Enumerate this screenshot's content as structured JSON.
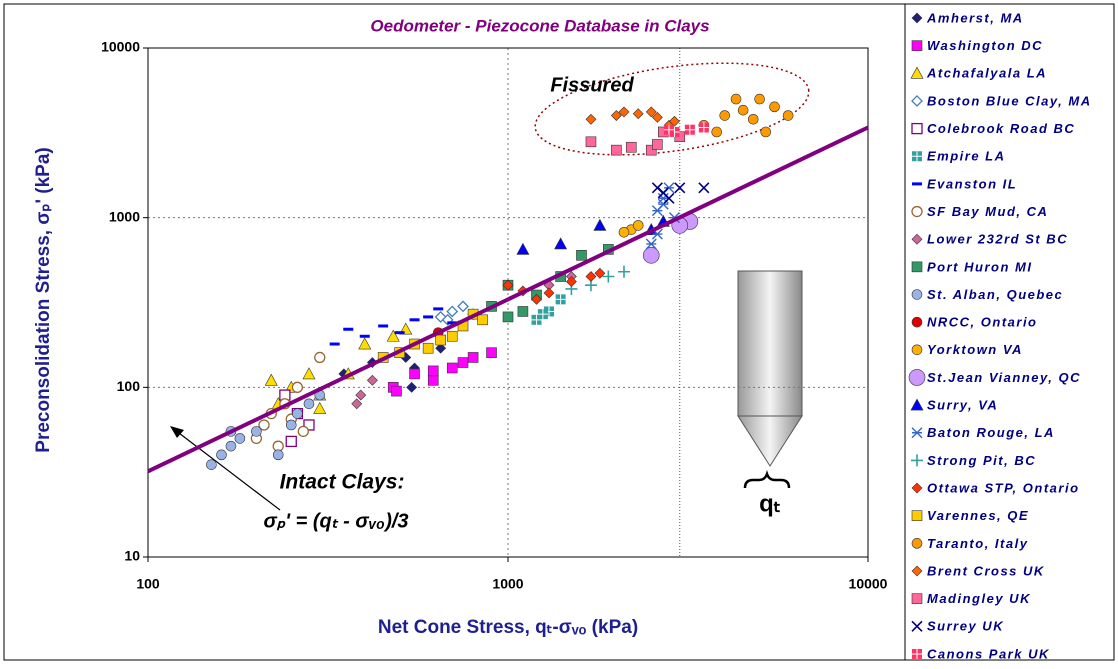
{
  "chart_data": {
    "type": "scatter",
    "title": "Oedometer - Piezocone Database in Clays",
    "x_label": "Net Cone Stress, qₜ-σᵥₒ   (kPa)",
    "y_label": "Preconsolidation Stress, σₚ'  (kPa)",
    "log_x": true,
    "log_y": true,
    "grid": true,
    "xlim": [
      100,
      10000
    ],
    "ylim": [
      10,
      10000
    ],
    "xticks": [
      100,
      1000,
      10000
    ],
    "yticks": [
      10,
      100,
      1000,
      10000
    ],
    "reference_line_x": 3000,
    "fit_line": {
      "x": [
        100,
        10000
      ],
      "values": [
        32,
        3400
      ],
      "color": "#800080"
    },
    "annotations": [
      "Fissured",
      "Intact Clays:",
      "σₚ' = (qₜ - σᵥₒ)/3",
      "qₜ"
    ],
    "series": [
      {
        "name": "Amherst, MA",
        "color": "#1f1f7a",
        "marker": "diamond",
        "x": [
          350,
          420,
          520,
          550,
          650,
          540
        ],
        "values": [
          120,
          140,
          150,
          130,
          170,
          100
        ]
      },
      {
        "name": "Washington DC",
        "color": "#ff00ff",
        "marker": "square",
        "x": [
          480,
          550,
          620,
          700,
          800,
          900,
          490,
          750,
          620
        ],
        "values": [
          100,
          120,
          110,
          130,
          150,
          160,
          95,
          140,
          125
        ]
      },
      {
        "name": "Atchafalyala LA",
        "color": "#ffdd00",
        "marker": "triangle",
        "x": [
          220,
          250,
          300,
          360,
          400,
          480,
          520,
          230,
          300,
          280
        ],
        "values": [
          110,
          100,
          90,
          120,
          180,
          200,
          220,
          80,
          75,
          120
        ]
      },
      {
        "name": "Boston Blue Clay, MA",
        "color": "#3f7fbf",
        "marker": "diamond-open",
        "x": [
          650,
          700,
          750,
          800,
          680
        ],
        "values": [
          260,
          280,
          300,
          270,
          250
        ]
      },
      {
        "name": "Colebrook Road BC",
        "color": "#800080",
        "marker": "square-open",
        "x": [
          250,
          260,
          280,
          240
        ],
        "values": [
          48,
          70,
          60,
          90
        ]
      },
      {
        "name": "Empire LA",
        "color": "#33a0a0",
        "marker": "plus-square",
        "x": [
          1200,
          1300,
          1400,
          1250
        ],
        "values": [
          250,
          280,
          330,
          270
        ]
      },
      {
        "name": "Evanston IL",
        "color": "#0000ff",
        "marker": "dash",
        "x": [
          330,
          360,
          400,
          450,
          550,
          600,
          700,
          500,
          640
        ],
        "values": [
          180,
          220,
          200,
          230,
          250,
          260,
          240,
          210,
          290
        ]
      },
      {
        "name": "SF Bay Mud, CA",
        "color": "#996633",
        "marker": "circle-open",
        "x": [
          200,
          210,
          220,
          240,
          260,
          300,
          230,
          270,
          250
        ],
        "values": [
          50,
          60,
          70,
          80,
          100,
          150,
          45,
          55,
          65
        ]
      },
      {
        "name": "Lower 232rd St BC",
        "color": "#cc6699",
        "marker": "diamond",
        "x": [
          380,
          390,
          420,
          1300,
          1500
        ],
        "values": [
          80,
          90,
          110,
          400,
          450
        ]
      },
      {
        "name": "Port Huron MI",
        "color": "#339966",
        "marker": "square",
        "x": [
          900,
          1000,
          1100,
          1200,
          1400,
          1600,
          1900,
          1000
        ],
        "values": [
          300,
          260,
          280,
          350,
          450,
          600,
          650,
          400
        ]
      },
      {
        "name": "St. Alban, Quebec",
        "color": "#99b3e6",
        "marker": "circle",
        "x": [
          150,
          170,
          180,
          200,
          230,
          250,
          170,
          260,
          280,
          300,
          160
        ],
        "values": [
          35,
          45,
          50,
          55,
          40,
          60,
          55,
          70,
          80,
          90,
          40
        ]
      },
      {
        "name": "NRCC, Ontario",
        "color": "#e00000",
        "marker": "circle",
        "x": [
          640
        ],
        "values": [
          210
        ]
      },
      {
        "name": "Yorktown VA",
        "color": "#ffb000",
        "marker": "circle",
        "x": [
          2200,
          2300,
          2100
        ],
        "values": [
          850,
          900,
          820
        ]
      },
      {
        "name": "St.Jean Vianney, QC",
        "color": "#cc99ff",
        "marker": "circle-big",
        "x": [
          2500,
          3200,
          3000
        ],
        "values": [
          600,
          950,
          900
        ]
      },
      {
        "name": "Surry, VA",
        "color": "#0000ff",
        "marker": "triangle",
        "x": [
          1100,
          1400,
          1800,
          2500,
          2700
        ],
        "values": [
          650,
          700,
          900,
          850,
          950
        ]
      },
      {
        "name": "Baton Rouge, LA",
        "color": "#3366cc",
        "marker": "asterisk",
        "x": [
          2500,
          2600,
          2700,
          2800,
          2900,
          2600,
          2700
        ],
        "values": [
          700,
          1100,
          1300,
          1500,
          1000,
          800,
          1200
        ]
      },
      {
        "name": "Strong Pit, BC",
        "color": "#33a0a0",
        "marker": "plus",
        "x": [
          1500,
          1900,
          2100,
          1700
        ],
        "values": [
          380,
          450,
          480,
          400
        ]
      },
      {
        "name": "Ottawa STP, Ontario",
        "color": "#ff3300",
        "marker": "diamond",
        "x": [
          1000,
          1100,
          1200,
          1300,
          1500,
          1700,
          1800
        ],
        "values": [
          400,
          370,
          330,
          360,
          420,
          450,
          470
        ]
      },
      {
        "name": "Varennes, QE",
        "color": "#ffcc00",
        "marker": "square",
        "x": [
          500,
          550,
          600,
          700,
          750,
          800,
          850,
          450,
          650
        ],
        "values": [
          160,
          180,
          170,
          200,
          230,
          270,
          250,
          150,
          190
        ]
      },
      {
        "name": "Taranto, Italy",
        "color": "#ff9900",
        "marker": "circle",
        "x": [
          3500,
          4000,
          4300,
          4500,
          5000,
          5200,
          4800,
          5500,
          3800,
          6000
        ],
        "values": [
          3500,
          4000,
          5000,
          4300,
          5000,
          3200,
          3800,
          4500,
          3200,
          4000
        ]
      },
      {
        "name": "Brent Cross UK",
        "color": "#ff6600",
        "marker": "diamond",
        "x": [
          1700,
          2000,
          2100,
          2300,
          2500,
          2600,
          2800,
          2900
        ],
        "values": [
          3800,
          4000,
          4200,
          4100,
          4200,
          3900,
          3500,
          3700
        ]
      },
      {
        "name": "Madingley UK",
        "color": "#ff6699",
        "marker": "square",
        "x": [
          1700,
          2000,
          2200,
          2500,
          2700,
          3000,
          2600
        ],
        "values": [
          2800,
          2500,
          2600,
          2500,
          3200,
          3000,
          2700
        ]
      },
      {
        "name": "Surrey UK",
        "color": "#000080",
        "marker": "x",
        "x": [
          2600,
          2800,
          3000,
          3500,
          2700
        ],
        "values": [
          1500,
          1300,
          1500,
          1500,
          1400
        ]
      },
      {
        "name": "Canons Park UK",
        "color": "#ff3366",
        "marker": "plus-square",
        "x": [
          2900,
          3200,
          3500,
          2800
        ],
        "values": [
          3200,
          3300,
          3400,
          3300
        ]
      }
    ]
  }
}
